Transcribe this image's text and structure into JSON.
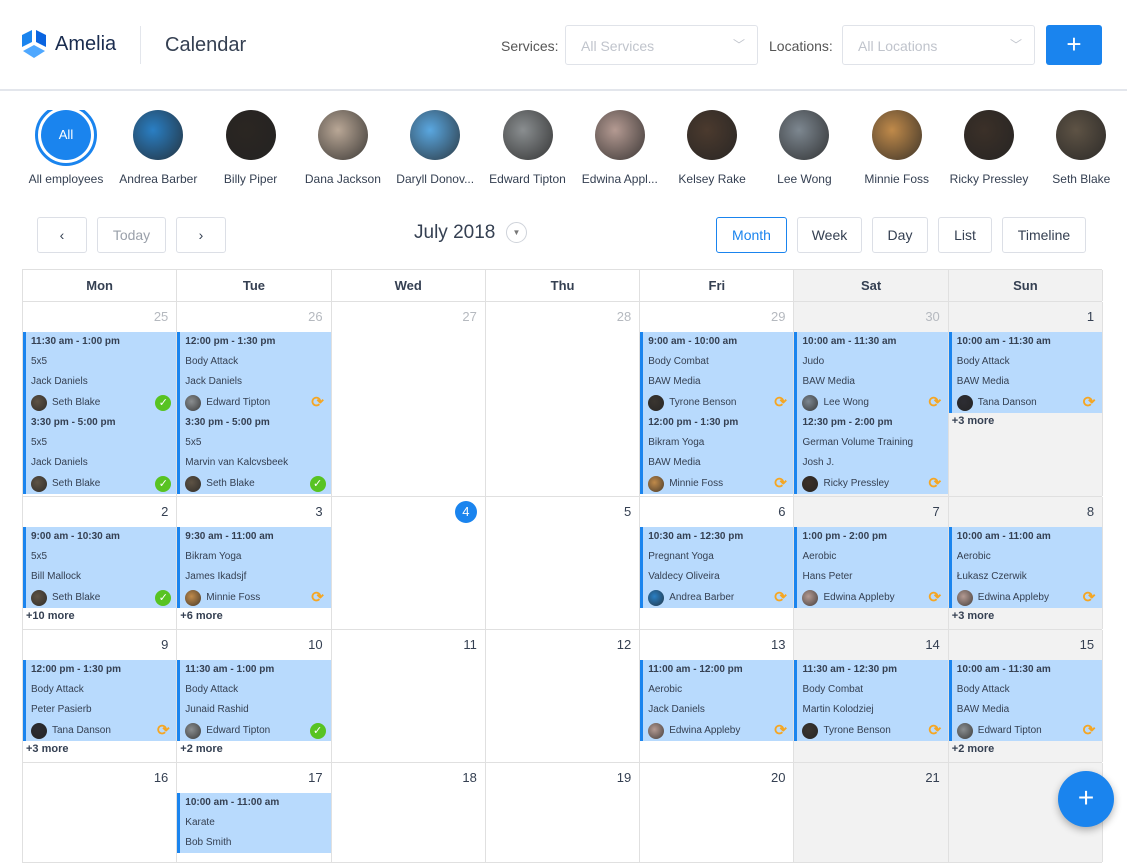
{
  "header": {
    "brand": "Amelia",
    "title": "Calendar",
    "services_label": "Services:",
    "services_placeholder": "All Services",
    "locations_label": "Locations:",
    "locations_placeholder": "All Locations",
    "add_label": "+"
  },
  "employees": [
    {
      "name": "All employees",
      "initials": "All",
      "selected": true
    },
    {
      "name": "Andrea Barber",
      "color": "#2a7fc4"
    },
    {
      "name": "Billy Piper",
      "color": "#2b2622"
    },
    {
      "name": "Dana Jackson",
      "color": "#b9a796"
    },
    {
      "name": "Daryll Donov...",
      "color": "#5aa7e0"
    },
    {
      "name": "Edward Tipton",
      "color": "#8a8e90"
    },
    {
      "name": "Edwina Appl...",
      "color": "#b49a92"
    },
    {
      "name": "Kelsey Rake",
      "color": "#4b3a2e"
    },
    {
      "name": "Lee Wong",
      "color": "#7d8790"
    },
    {
      "name": "Minnie Foss",
      "color": "#c08a4a"
    },
    {
      "name": "Ricky Pressley",
      "color": "#3b3028"
    },
    {
      "name": "Seth Blake",
      "color": "#5e5345"
    }
  ],
  "toolbar": {
    "prev": "‹",
    "today": "Today",
    "next": "›",
    "month_title": "July 2018",
    "views": [
      "Month",
      "Week",
      "Day",
      "List",
      "Timeline"
    ],
    "active_view": "Month"
  },
  "calendar": {
    "weekdays": [
      "Mon",
      "Tue",
      "Wed",
      "Thu",
      "Fri",
      "Sat",
      "Sun"
    ],
    "weeks": [
      {
        "days": [
          {
            "num": "25",
            "muted": true,
            "events": [
              {
                "time": "11:30 am - 1:00 pm",
                "service": "5x5",
                "customer": "Jack Daniels",
                "employee": "Seth Blake",
                "status": "approved"
              },
              {
                "time": "3:30 pm - 5:00 pm",
                "service": "5x5",
                "customer": "Jack Daniels",
                "employee": "Seth Blake",
                "status": "approved"
              }
            ]
          },
          {
            "num": "26",
            "muted": true,
            "events": [
              {
                "time": "12:00 pm - 1:30 pm",
                "service": "Body Attack",
                "customer": "Jack Daniels",
                "employee": "Edward Tipton",
                "status": "pending"
              },
              {
                "time": "3:30 pm - 5:00 pm",
                "service": "5x5",
                "customer": "Marvin van Kalcvsbeek",
                "employee": "Seth Blake",
                "status": "approved"
              }
            ]
          },
          {
            "num": "27",
            "muted": true,
            "events": []
          },
          {
            "num": "28",
            "muted": true,
            "events": []
          },
          {
            "num": "29",
            "muted": true,
            "events": [
              {
                "time": "9:00 am - 10:00 am",
                "service": "Body Combat",
                "customer": "BAW Media",
                "employee": "Tyrone Benson",
                "status": "pending"
              },
              {
                "time": "12:00 pm - 1:30 pm",
                "service": "Bikram Yoga",
                "customer": "BAW Media",
                "employee": "Minnie Foss",
                "status": "pending"
              }
            ]
          },
          {
            "num": "30",
            "muted": true,
            "events": [
              {
                "time": "10:00 am - 11:30 am",
                "service": "Judo",
                "customer": "BAW Media",
                "employee": "Lee Wong",
                "status": "pending"
              },
              {
                "time": "12:30 pm - 2:00 pm",
                "service": "German Volume Training",
                "customer": "Josh J.",
                "employee": "Ricky Pressley",
                "status": "pending"
              }
            ]
          },
          {
            "num": "1",
            "events": [
              {
                "time": "10:00 am - 11:30 am",
                "service": "Body Attack",
                "customer": "BAW Media",
                "employee": "Tana Danson",
                "status": "pending"
              }
            ],
            "more": "+3 more"
          }
        ]
      },
      {
        "days": [
          {
            "num": "2",
            "events": [
              {
                "time": "9:00 am - 10:30 am",
                "service": "5x5",
                "customer": "Bill Mallock",
                "employee": "Seth Blake",
                "status": "approved"
              }
            ],
            "more": "+10 more"
          },
          {
            "num": "3",
            "events": [
              {
                "time": "9:30 am - 11:00 am",
                "service": "Bikram Yoga",
                "customer": "James Ikadsjf",
                "employee": "Minnie Foss",
                "status": "pending"
              }
            ],
            "more": "+6 more"
          },
          {
            "num": "4",
            "today": true,
            "events": []
          },
          {
            "num": "5",
            "events": []
          },
          {
            "num": "6",
            "events": [
              {
                "time": "10:30 am - 12:30 pm",
                "service": "Pregnant Yoga",
                "customer": "Valdecy Oliveira",
                "employee": "Andrea Barber",
                "status": "pending"
              }
            ]
          },
          {
            "num": "7",
            "events": [
              {
                "time": "1:00 pm - 2:00 pm",
                "service": "Aerobic",
                "customer": "Hans Peter",
                "employee": "Edwina Appleby",
                "status": "pending"
              }
            ]
          },
          {
            "num": "8",
            "events": [
              {
                "time": "10:00 am - 11:00 am",
                "service": "Aerobic",
                "customer": "Łukasz Czerwik",
                "employee": "Edwina Appleby",
                "status": "pending"
              }
            ],
            "more": "+3 more"
          }
        ]
      },
      {
        "days": [
          {
            "num": "9",
            "events": [
              {
                "time": "12:00 pm - 1:30 pm",
                "service": "Body Attack",
                "customer": "Peter Pasierb",
                "employee": "Tana Danson",
                "status": "pending"
              }
            ],
            "more": "+3 more"
          },
          {
            "num": "10",
            "events": [
              {
                "time": "11:30 am - 1:00 pm",
                "service": "Body Attack",
                "customer": "Junaid Rashid",
                "employee": "Edward Tipton",
                "status": "approved"
              }
            ],
            "more": "+2 more"
          },
          {
            "num": "11",
            "events": []
          },
          {
            "num": "12",
            "events": []
          },
          {
            "num": "13",
            "events": [
              {
                "time": "11:00 am - 12:00 pm",
                "service": "Aerobic",
                "customer": "Jack Daniels",
                "employee": "Edwina Appleby",
                "status": "pending"
              }
            ]
          },
          {
            "num": "14",
            "events": [
              {
                "time": "11:30 am - 12:30 pm",
                "service": "Body Combat",
                "customer": "Martin Kolodziej",
                "employee": "Tyrone Benson",
                "status": "pending"
              }
            ]
          },
          {
            "num": "15",
            "events": [
              {
                "time": "10:00 am - 11:30 am",
                "service": "Body Attack",
                "customer": "BAW Media",
                "employee": "Edward Tipton",
                "status": "pending"
              }
            ],
            "more": "+2 more"
          }
        ]
      },
      {
        "days": [
          {
            "num": "16",
            "events": []
          },
          {
            "num": "17",
            "events": [
              {
                "time": "10:00 am - 11:00 am",
                "service": "Karate",
                "customer": "Bob Smith"
              }
            ]
          },
          {
            "num": "18",
            "events": []
          },
          {
            "num": "19",
            "events": []
          },
          {
            "num": "20",
            "events": []
          },
          {
            "num": "21",
            "events": []
          },
          {
            "num": "22",
            "events": []
          }
        ]
      }
    ]
  },
  "fab_label": "+",
  "colors": {
    "accent": "#1a84ee",
    "event_bg": "#b8dafd",
    "approved": "#58c322",
    "pending": "#f5a623",
    "weekend_bg": "#f2f2f2"
  }
}
